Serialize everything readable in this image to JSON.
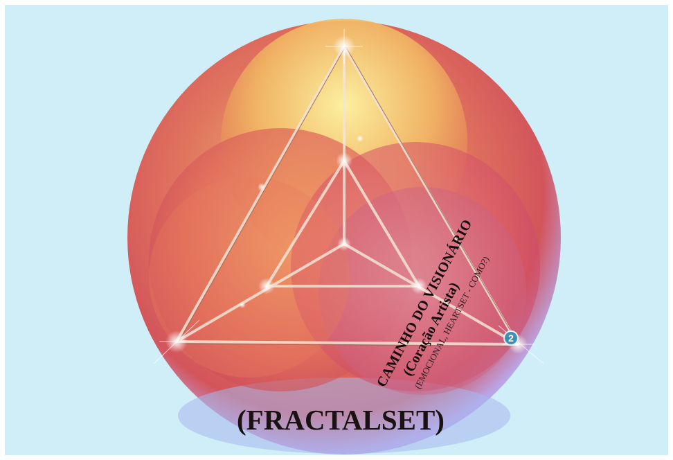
{
  "diagram": {
    "bottom_label": "(FRACTALSET)",
    "path_title": "CAMINHO DO VISIONÁRIO",
    "path_subtitle": "(Coração Artista)",
    "path_note": "(EMOCIONAL, HEARTSET - COMO?)",
    "badge_number": "2",
    "colors": {
      "background": "#cfeef7",
      "sphere_red": "#d94a4a",
      "sphere_orange": "#f0a25a",
      "sphere_yellow": "#f7e58a",
      "edge_blue": "#8ea6e8",
      "badge": "#3f8fb0"
    }
  }
}
